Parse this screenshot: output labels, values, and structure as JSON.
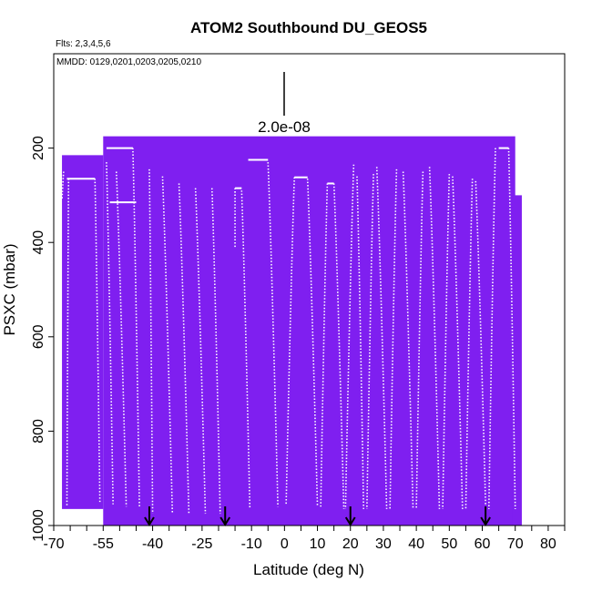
{
  "chart_data": {
    "type": "scatter",
    "title": "ATOM2 Southbound DU_GEOS5",
    "flights_text": "Flts: 2,3,4,5,6",
    "dates_text": "MMDD: 0129,0201,0203,0205,0210",
    "scale_label": "2.0e-08",
    "xlabel": "Latitude (deg N)",
    "ylabel": "PSXC (mbar)",
    "xlim": [
      -70,
      85
    ],
    "ylim": [
      1000,
      0
    ],
    "x_ticks_labeled": [
      -70,
      -55,
      -40,
      -25,
      -10,
      0,
      10,
      20,
      30,
      40,
      50,
      60,
      70,
      80
    ],
    "x_tick_labels": [
      "-70",
      "-55",
      "-40",
      "-25",
      "-10",
      "0",
      "10",
      "20",
      "30",
      "40",
      "50",
      "60",
      "70",
      "80"
    ],
    "x_ticks_minor": [
      -65,
      -60,
      -50,
      -45,
      -35,
      -30,
      -20,
      -15,
      -5,
      5,
      15,
      25,
      35,
      45,
      55,
      65,
      75,
      85
    ],
    "y_ticks": [
      200,
      400,
      600,
      800,
      1000
    ],
    "y_tick_labels": [
      "200",
      "400",
      "600",
      "800",
      "1000"
    ],
    "field_color": "#7f1ff0",
    "field_color_dark": "#6a14d6",
    "track_color": "#ffffff",
    "arrow_latitudes": [
      -41,
      -18,
      20,
      61
    ],
    "field_blocks": [
      {
        "x0": -67.5,
        "x1": -55,
        "p0": 215,
        "p1": 965
      },
      {
        "x0": -55,
        "x1": 70,
        "p0": 175,
        "p1": 1000
      },
      {
        "x0": 69,
        "x1": 72,
        "p0": 300,
        "p1": 1000
      }
    ],
    "flat_segments": [
      {
        "x0": -66,
        "x1": -57.5,
        "p": 265
      },
      {
        "x0": -54,
        "x1": -46,
        "p": 200
      },
      {
        "x0": -53,
        "x1": -45,
        "p": 315
      },
      {
        "x0": -15,
        "x1": -13,
        "p": 285
      },
      {
        "x0": -11,
        "x1": -5,
        "p": 225
      },
      {
        "x0": 3,
        "x1": 7,
        "p": 262
      },
      {
        "x0": 13,
        "x1": 15,
        "p": 275
      },
      {
        "x0": 65,
        "x1": 68,
        "p": 200
      }
    ],
    "profiles": [
      {
        "x_top": -67,
        "x_bot": -67.5,
        "p_top": 250,
        "p_bot": 310
      },
      {
        "x_top": -65.5,
        "x_bot": -66,
        "p_top": 265,
        "p_bot": 960
      },
      {
        "x_top": -57.5,
        "x_bot": -56,
        "p_top": 265,
        "p_bot": 950
      },
      {
        "x_top": -54,
        "x_bot": -52,
        "p_top": 230,
        "p_bot": 955
      },
      {
        "x_top": -51,
        "x_bot": -48,
        "p_top": 250,
        "p_bot": 960
      },
      {
        "x_top": -46,
        "x_bot": -44,
        "p_top": 200,
        "p_bot": 960
      },
      {
        "x_top": -41,
        "x_bot": -40,
        "p_top": 245,
        "p_bot": 975
      },
      {
        "x_top": -37,
        "x_bot": -34,
        "p_top": 260,
        "p_bot": 975
      },
      {
        "x_top": -32,
        "x_bot": -29,
        "p_top": 275,
        "p_bot": 975
      },
      {
        "x_top": -27,
        "x_bot": -24,
        "p_top": 285,
        "p_bot": 975
      },
      {
        "x_top": -22,
        "x_bot": -19.5,
        "p_top": 285,
        "p_bot": 975
      },
      {
        "x_top": -15,
        "x_bot": -15,
        "p_top": 285,
        "p_bot": 410
      },
      {
        "x_top": -13,
        "x_bot": -10.5,
        "p_top": 290,
        "p_bot": 965
      },
      {
        "x_top": -5,
        "x_bot": -2,
        "p_top": 230,
        "p_bot": 960
      },
      {
        "x_top": 3,
        "x_bot": 0.5,
        "p_top": 262,
        "p_bot": 955
      },
      {
        "x_top": 7,
        "x_bot": 10,
        "p_top": 265,
        "p_bot": 960
      },
      {
        "x_top": 13,
        "x_bot": 11,
        "p_top": 275,
        "p_bot": 960
      },
      {
        "x_top": 15,
        "x_bot": 18,
        "p_top": 275,
        "p_bot": 965
      },
      {
        "x_top": 21,
        "x_bot": 18.5,
        "p_top": 235,
        "p_bot": 965
      },
      {
        "x_top": 22,
        "x_bot": 24,
        "p_top": 260,
        "p_bot": 965
      },
      {
        "x_top": 27,
        "x_bot": 25,
        "p_top": 255,
        "p_bot": 965
      },
      {
        "x_top": 28,
        "x_bot": 31,
        "p_top": 240,
        "p_bot": 965
      },
      {
        "x_top": 34,
        "x_bot": 32,
        "p_top": 245,
        "p_bot": 965
      },
      {
        "x_top": 36,
        "x_bot": 39,
        "p_top": 250,
        "p_bot": 965
      },
      {
        "x_top": 42,
        "x_bot": 40,
        "p_top": 250,
        "p_bot": 965
      },
      {
        "x_top": 44,
        "x_bot": 47,
        "p_top": 240,
        "p_bot": 965
      },
      {
        "x_top": 50,
        "x_bot": 48,
        "p_top": 255,
        "p_bot": 965
      },
      {
        "x_top": 51,
        "x_bot": 54,
        "p_top": 260,
        "p_bot": 965
      },
      {
        "x_top": 57,
        "x_bot": 55,
        "p_top": 265,
        "p_bot": 965
      },
      {
        "x_top": 58,
        "x_bot": 61,
        "p_top": 270,
        "p_bot": 955
      },
      {
        "x_top": 64,
        "x_bot": 62,
        "p_top": 200,
        "p_bot": 965
      },
      {
        "x_top": 68,
        "x_bot": 70,
        "p_top": 200,
        "p_bot": 965
      }
    ]
  }
}
